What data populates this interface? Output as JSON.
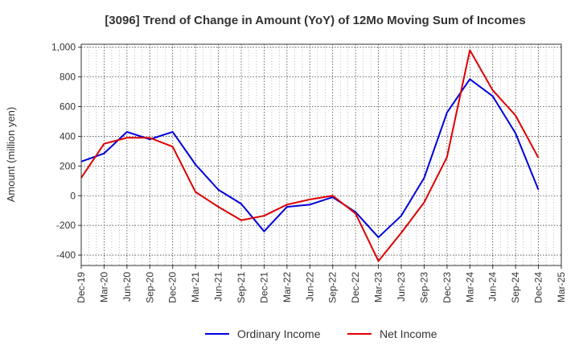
{
  "chart_data": {
    "type": "line",
    "title": "[3096]  Trend of Change in Amount (YoY) of 12Mo Moving Sum of Incomes",
    "xlabel": "",
    "ylabel": "Amount (million yen)",
    "ylim": [
      -470,
      1020
    ],
    "yticks": [
      -400,
      -200,
      0,
      200,
      400,
      600,
      800,
      1000
    ],
    "ytick_labels": [
      "-400",
      "-200",
      "0",
      "200",
      "400",
      "600",
      "800",
      "1,000"
    ],
    "categories": [
      "Dec-19",
      "Mar-20",
      "Jun-20",
      "Sep-20",
      "Dec-20",
      "Mar-21",
      "Jun-21",
      "Sep-21",
      "Dec-21",
      "Mar-22",
      "Jun-22",
      "Sep-22",
      "Dec-22",
      "Mar-23",
      "Jun-23",
      "Sep-23",
      "Dec-23",
      "Mar-24",
      "Jun-24",
      "Sep-24",
      "Dec-24",
      "Mar-25"
    ],
    "grid": true,
    "legend_position": "bottom",
    "series": [
      {
        "name": "Ordinary Income",
        "color": "#0000dd",
        "values": [
          230,
          285,
          430,
          380,
          430,
          210,
          40,
          -55,
          -240,
          -75,
          -60,
          -10,
          -110,
          -280,
          -135,
          120,
          560,
          785,
          670,
          420,
          40,
          null
        ]
      },
      {
        "name": "Net Income",
        "color": "#dd0000",
        "values": [
          120,
          350,
          390,
          390,
          330,
          25,
          -75,
          -165,
          -135,
          -60,
          -25,
          0,
          -120,
          -440,
          -250,
          -45,
          260,
          980,
          710,
          540,
          255,
          null
        ]
      }
    ]
  }
}
